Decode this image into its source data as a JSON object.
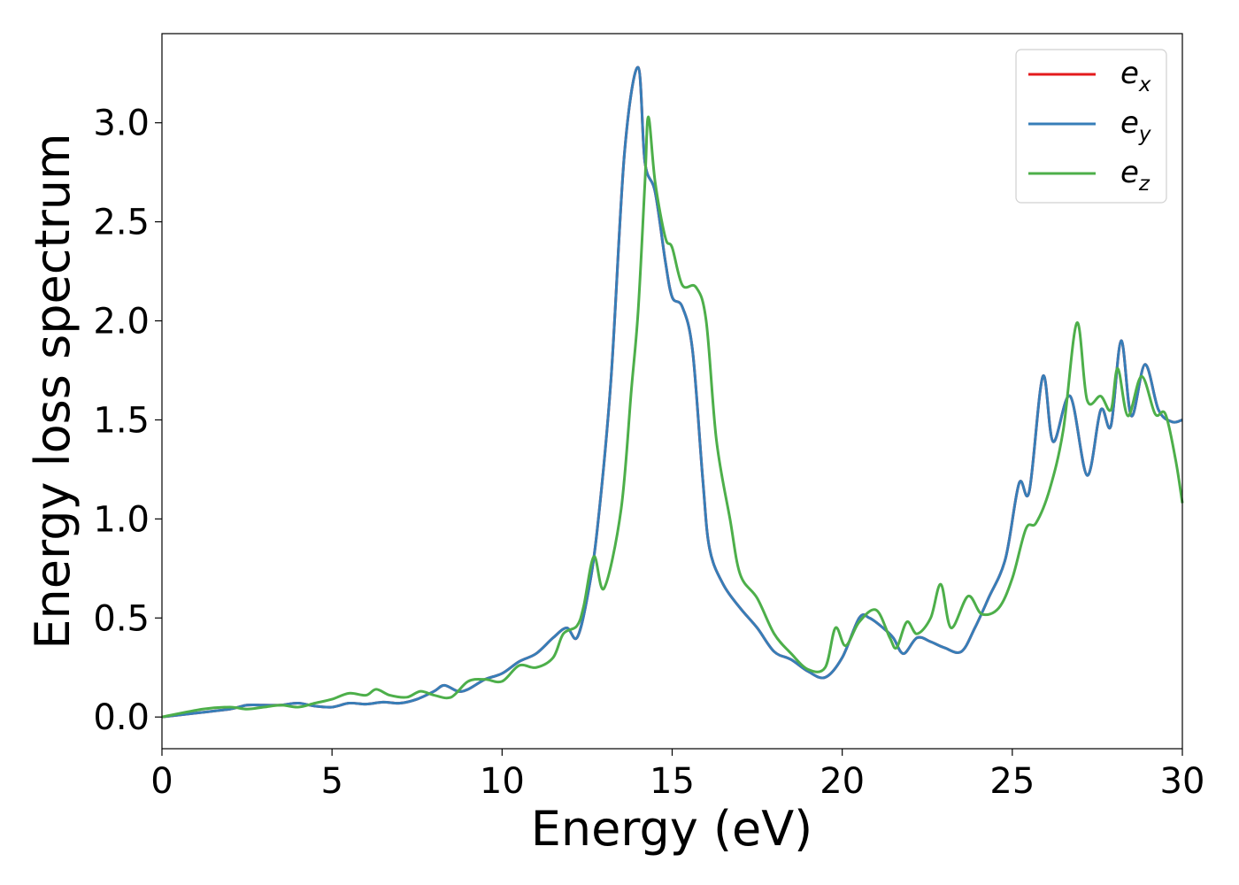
{
  "chart_data": {
    "type": "line",
    "xlabel": "Energy (eV)",
    "ylabel": "Energy loss spectrum",
    "xlim": [
      0,
      30
    ],
    "ylim": [
      -0.16,
      3.45
    ],
    "xticks": [
      0,
      5,
      10,
      15,
      20,
      25,
      30
    ],
    "yticks": [
      "0.0",
      "0.5",
      "1.0",
      "1.5",
      "2.0",
      "2.5",
      "3.0"
    ],
    "grid": false,
    "legend_position": "top-right",
    "colors": {
      "e_x": "#e41a1c",
      "e_y": "#377eb8",
      "e_z": "#4daf4a"
    },
    "legend": [
      {
        "base": "e",
        "sub": "x",
        "color": "#e41a1c"
      },
      {
        "base": "e",
        "sub": "y",
        "color": "#377eb8"
      },
      {
        "base": "e",
        "sub": "z",
        "color": "#4daf4a"
      }
    ],
    "series": [
      {
        "name": "e_x",
        "color": "#e41a1c",
        "points": [
          [
            0,
            0
          ],
          [
            1,
            0.02
          ],
          [
            2,
            0.04
          ],
          [
            2.5,
            0.06
          ],
          [
            3,
            0.06
          ],
          [
            3.5,
            0.06
          ],
          [
            4,
            0.07
          ],
          [
            4.5,
            0.055
          ],
          [
            5,
            0.05
          ],
          [
            5.5,
            0.07
          ],
          [
            6,
            0.065
          ],
          [
            6.5,
            0.075
          ],
          [
            7,
            0.07
          ],
          [
            7.5,
            0.09
          ],
          [
            8,
            0.13
          ],
          [
            8.3,
            0.16
          ],
          [
            8.7,
            0.13
          ],
          [
            9,
            0.14
          ],
          [
            9.5,
            0.19
          ],
          [
            10,
            0.22
          ],
          [
            10.5,
            0.28
          ],
          [
            11,
            0.32
          ],
          [
            11.5,
            0.4
          ],
          [
            11.9,
            0.45
          ],
          [
            12.2,
            0.4
          ],
          [
            12.5,
            0.6
          ],
          [
            12.8,
            0.95
          ],
          [
            13.2,
            1.7
          ],
          [
            13.6,
            2.85
          ],
          [
            14,
            3.28
          ],
          [
            14.2,
            2.8
          ],
          [
            14.5,
            2.65
          ],
          [
            14.8,
            2.3
          ],
          [
            15,
            2.12
          ],
          [
            15.3,
            2.07
          ],
          [
            15.6,
            1.85
          ],
          [
            15.9,
            1.2
          ],
          [
            16.1,
            0.85
          ],
          [
            16.5,
            0.67
          ],
          [
            17,
            0.55
          ],
          [
            17.5,
            0.45
          ],
          [
            18,
            0.33
          ],
          [
            18.5,
            0.29
          ],
          [
            19,
            0.23
          ],
          [
            19.5,
            0.2
          ],
          [
            20,
            0.3
          ],
          [
            20.5,
            0.5
          ],
          [
            20.8,
            0.5
          ],
          [
            21.2,
            0.45
          ],
          [
            21.5,
            0.4
          ],
          [
            21.8,
            0.32
          ],
          [
            22.2,
            0.4
          ],
          [
            22.6,
            0.38
          ],
          [
            23,
            0.35
          ],
          [
            23.5,
            0.33
          ],
          [
            23.9,
            0.45
          ],
          [
            24.3,
            0.6
          ],
          [
            24.8,
            0.8
          ],
          [
            25.2,
            1.18
          ],
          [
            25.5,
            1.14
          ],
          [
            25.9,
            1.72
          ],
          [
            26.2,
            1.39
          ],
          [
            26.7,
            1.62
          ],
          [
            27.2,
            1.22
          ],
          [
            27.6,
            1.55
          ],
          [
            27.9,
            1.47
          ],
          [
            28.2,
            1.9
          ],
          [
            28.5,
            1.52
          ],
          [
            28.9,
            1.78
          ],
          [
            29.3,
            1.55
          ],
          [
            29.7,
            1.49
          ],
          [
            30,
            1.5
          ]
        ]
      },
      {
        "name": "e_y",
        "color": "#377eb8",
        "points": [
          [
            0,
            0
          ],
          [
            1,
            0.02
          ],
          [
            2,
            0.04
          ],
          [
            2.5,
            0.06
          ],
          [
            3,
            0.06
          ],
          [
            3.5,
            0.06
          ],
          [
            4,
            0.07
          ],
          [
            4.5,
            0.055
          ],
          [
            5,
            0.05
          ],
          [
            5.5,
            0.07
          ],
          [
            6,
            0.065
          ],
          [
            6.5,
            0.075
          ],
          [
            7,
            0.07
          ],
          [
            7.5,
            0.09
          ],
          [
            8,
            0.13
          ],
          [
            8.3,
            0.16
          ],
          [
            8.7,
            0.13
          ],
          [
            9,
            0.14
          ],
          [
            9.5,
            0.19
          ],
          [
            10,
            0.22
          ],
          [
            10.5,
            0.28
          ],
          [
            11,
            0.32
          ],
          [
            11.5,
            0.4
          ],
          [
            11.9,
            0.45
          ],
          [
            12.2,
            0.4
          ],
          [
            12.5,
            0.6
          ],
          [
            12.8,
            0.95
          ],
          [
            13.2,
            1.7
          ],
          [
            13.6,
            2.85
          ],
          [
            14,
            3.28
          ],
          [
            14.2,
            2.8
          ],
          [
            14.5,
            2.65
          ],
          [
            14.8,
            2.3
          ],
          [
            15,
            2.12
          ],
          [
            15.3,
            2.07
          ],
          [
            15.6,
            1.85
          ],
          [
            15.9,
            1.2
          ],
          [
            16.1,
            0.85
          ],
          [
            16.5,
            0.67
          ],
          [
            17,
            0.55
          ],
          [
            17.5,
            0.45
          ],
          [
            18,
            0.33
          ],
          [
            18.5,
            0.29
          ],
          [
            19,
            0.23
          ],
          [
            19.5,
            0.2
          ],
          [
            20,
            0.3
          ],
          [
            20.5,
            0.5
          ],
          [
            20.8,
            0.5
          ],
          [
            21.2,
            0.45
          ],
          [
            21.5,
            0.4
          ],
          [
            21.8,
            0.32
          ],
          [
            22.2,
            0.4
          ],
          [
            22.6,
            0.38
          ],
          [
            23,
            0.35
          ],
          [
            23.5,
            0.33
          ],
          [
            23.9,
            0.45
          ],
          [
            24.3,
            0.6
          ],
          [
            24.8,
            0.8
          ],
          [
            25.2,
            1.18
          ],
          [
            25.5,
            1.14
          ],
          [
            25.9,
            1.72
          ],
          [
            26.2,
            1.39
          ],
          [
            26.7,
            1.62
          ],
          [
            27.2,
            1.22
          ],
          [
            27.6,
            1.55
          ],
          [
            27.9,
            1.47
          ],
          [
            28.2,
            1.9
          ],
          [
            28.5,
            1.52
          ],
          [
            28.9,
            1.78
          ],
          [
            29.3,
            1.55
          ],
          [
            29.7,
            1.49
          ],
          [
            30,
            1.5
          ]
        ]
      },
      {
        "name": "e_z",
        "color": "#4daf4a",
        "points": [
          [
            0,
            0
          ],
          [
            1.2,
            0.04
          ],
          [
            2,
            0.05
          ],
          [
            2.5,
            0.04
          ],
          [
            3,
            0.05
          ],
          [
            3.5,
            0.06
          ],
          [
            4,
            0.05
          ],
          [
            4.5,
            0.07
          ],
          [
            5,
            0.09
          ],
          [
            5.5,
            0.12
          ],
          [
            6,
            0.11
          ],
          [
            6.3,
            0.14
          ],
          [
            6.7,
            0.11
          ],
          [
            7.2,
            0.1
          ],
          [
            7.6,
            0.13
          ],
          [
            8,
            0.11
          ],
          [
            8.5,
            0.1
          ],
          [
            9,
            0.18
          ],
          [
            9.5,
            0.19
          ],
          [
            10,
            0.18
          ],
          [
            10.5,
            0.26
          ],
          [
            11,
            0.25
          ],
          [
            11.5,
            0.3
          ],
          [
            11.8,
            0.42
          ],
          [
            12.2,
            0.46
          ],
          [
            12.4,
            0.56
          ],
          [
            12.7,
            0.81
          ],
          [
            13,
            0.65
          ],
          [
            13.5,
            1.05
          ],
          [
            13.8,
            1.65
          ],
          [
            14,
            2.05
          ],
          [
            14.2,
            2.7
          ],
          [
            14.3,
            3.03
          ],
          [
            14.5,
            2.7
          ],
          [
            14.8,
            2.42
          ],
          [
            15,
            2.37
          ],
          [
            15.3,
            2.18
          ],
          [
            15.7,
            2.17
          ],
          [
            16,
            2.0
          ],
          [
            16.3,
            1.4
          ],
          [
            16.7,
            1.0
          ],
          [
            17,
            0.72
          ],
          [
            17.5,
            0.6
          ],
          [
            18,
            0.42
          ],
          [
            18.5,
            0.32
          ],
          [
            19,
            0.24
          ],
          [
            19.5,
            0.25
          ],
          [
            19.8,
            0.45
          ],
          [
            20.1,
            0.36
          ],
          [
            20.5,
            0.48
          ],
          [
            21,
            0.54
          ],
          [
            21.4,
            0.4
          ],
          [
            21.6,
            0.35
          ],
          [
            21.9,
            0.48
          ],
          [
            22.2,
            0.42
          ],
          [
            22.6,
            0.5
          ],
          [
            22.9,
            0.67
          ],
          [
            23.2,
            0.45
          ],
          [
            23.7,
            0.61
          ],
          [
            24.1,
            0.52
          ],
          [
            24.6,
            0.55
          ],
          [
            25,
            0.7
          ],
          [
            25.4,
            0.95
          ],
          [
            25.7,
            0.98
          ],
          [
            26.1,
            1.15
          ],
          [
            26.5,
            1.45
          ],
          [
            26.9,
            1.99
          ],
          [
            27.2,
            1.6
          ],
          [
            27.6,
            1.62
          ],
          [
            27.9,
            1.55
          ],
          [
            28.1,
            1.76
          ],
          [
            28.4,
            1.52
          ],
          [
            28.8,
            1.72
          ],
          [
            29.2,
            1.53
          ],
          [
            29.5,
            1.53
          ],
          [
            29.8,
            1.3
          ],
          [
            30,
            1.08
          ]
        ]
      }
    ]
  }
}
